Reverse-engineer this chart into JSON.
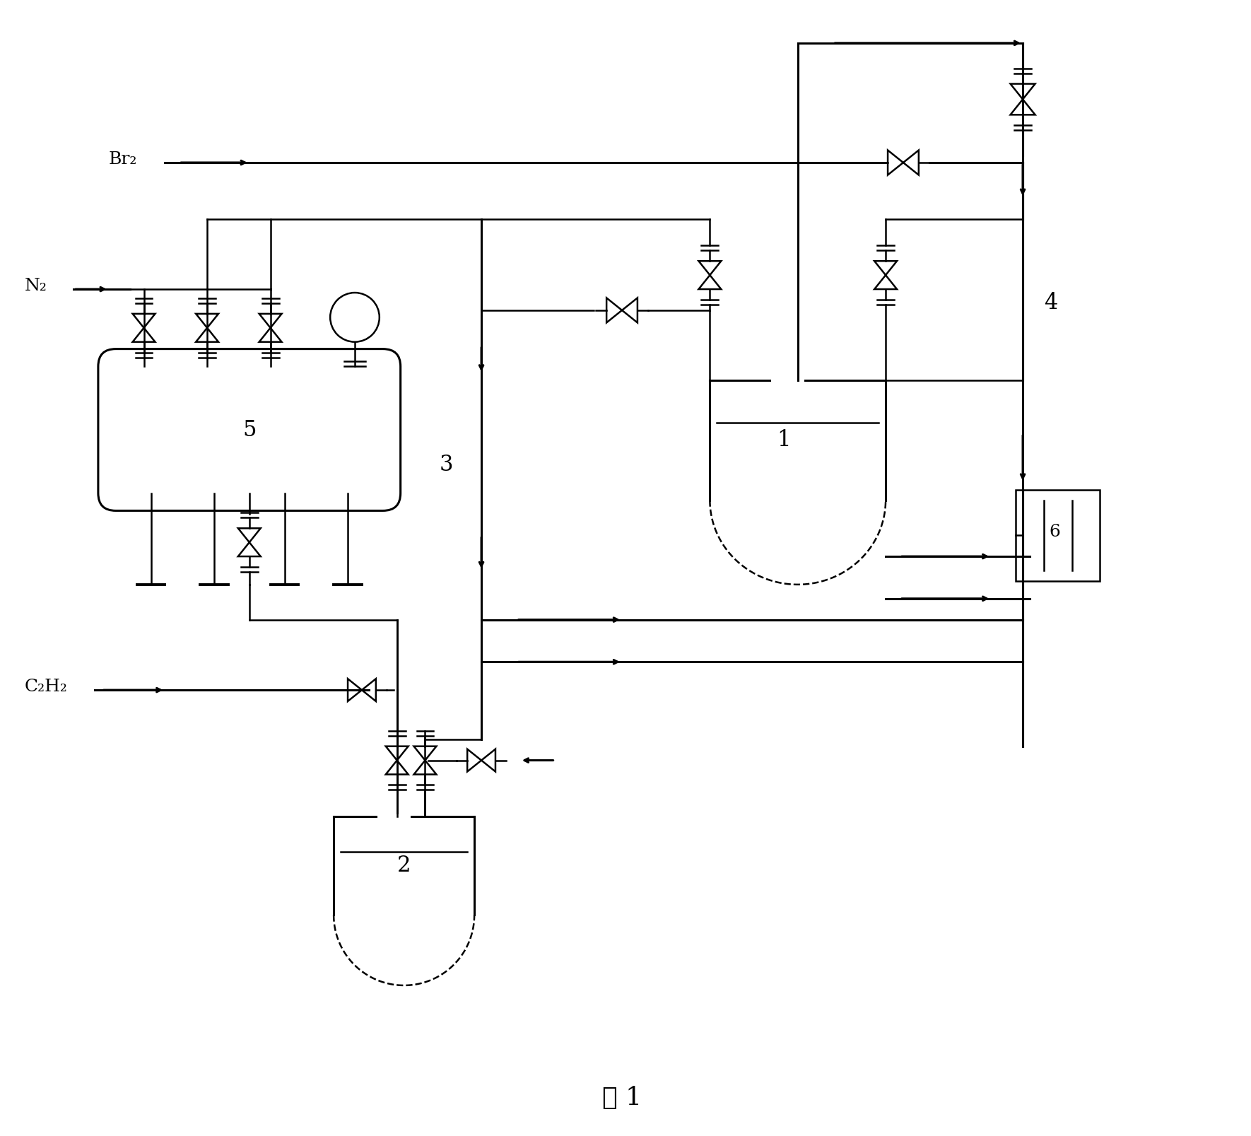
{
  "title": "图 1",
  "background_color": "#ffffff",
  "line_color": "#000000",
  "labels": {
    "Br2": "Br₂",
    "N2": "N₂",
    "C2H2": "C₂H₂",
    "vessel1": "1",
    "vessel2": "2",
    "pipe3": "3",
    "pipe4": "4",
    "vessel5": "5",
    "box6": "6"
  }
}
